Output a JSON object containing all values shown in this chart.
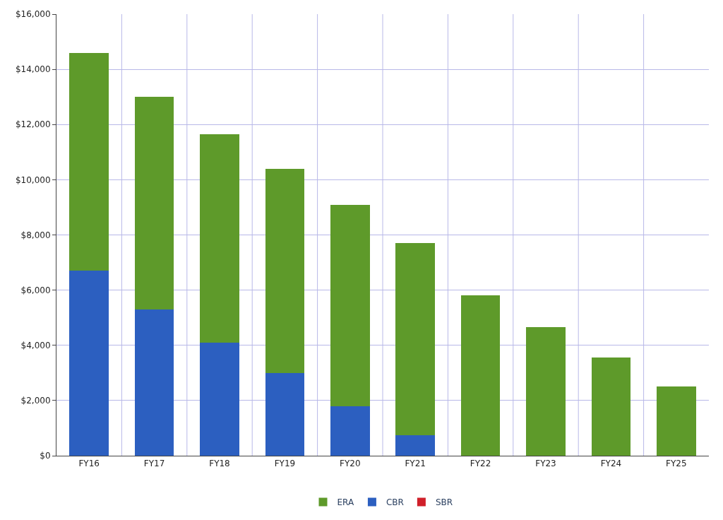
{
  "chart_data": {
    "type": "bar",
    "stacked": true,
    "categories": [
      "FY16",
      "FY17",
      "FY18",
      "FY19",
      "FY20",
      "FY21",
      "FY22",
      "FY23",
      "FY24",
      "FY25"
    ],
    "series": [
      {
        "name": "SBR",
        "color": "#d0202a",
        "values": [
          0,
          0,
          0,
          0,
          0,
          0,
          0,
          0,
          0,
          0
        ]
      },
      {
        "name": "CBR",
        "color": "#2c5fc0",
        "values": [
          6700,
          5300,
          4100,
          3000,
          1800,
          750,
          0,
          0,
          0,
          0
        ]
      },
      {
        "name": "ERA",
        "color": "#5e9a2a",
        "values": [
          7900,
          7700,
          7550,
          7400,
          7300,
          6950,
          5800,
          4650,
          3550,
          2500
        ]
      }
    ],
    "ylim": [
      0,
      16000
    ],
    "yticks": [
      {
        "value": 0,
        "label": "$0"
      },
      {
        "value": 2000,
        "label": "$2,000"
      },
      {
        "value": 4000,
        "label": "$4,000"
      },
      {
        "value": 6000,
        "label": "$6,000"
      },
      {
        "value": 8000,
        "label": "$8,000"
      },
      {
        "value": 10000,
        "label": "$10,000"
      },
      {
        "value": 12000,
        "label": "$12,000"
      },
      {
        "value": 14000,
        "label": "$14,000"
      },
      {
        "value": 16000,
        "label": "$16,000"
      }
    ],
    "grid": true,
    "legend": "bottom"
  }
}
